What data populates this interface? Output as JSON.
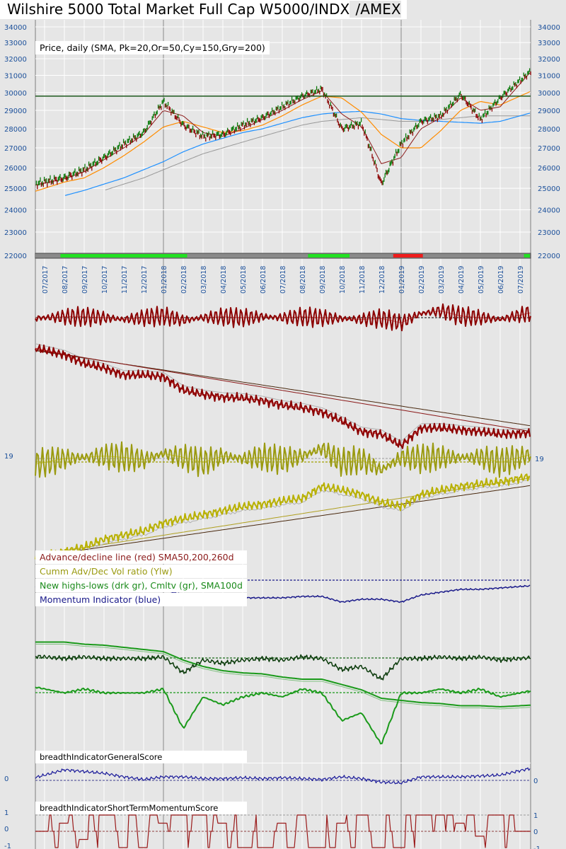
{
  "title": {
    "main": "Wilshire 5000 Total Market Full Cap W5000/INDX",
    "suffix": " /AMEX"
  },
  "colors": {
    "price_up": "#0a7a0a",
    "price_down": "#8b0000",
    "sma20": "#8b1a1a",
    "sma50": "#ff8c00",
    "sma150": "#1e90ff",
    "sma200": "#999999",
    "horizontal": "#1e5a1e",
    "axis_text": "#1a4f9a"
  },
  "chart_data": [
    {
      "type": "line",
      "title": "Price, daily (SMA, Pk=20,Or=50,Cy=150,Gry=200)",
      "x_tick_labels": [
        "07/2017",
        "08/2017",
        "09/2017",
        "10/2017",
        "11/2017",
        "12/2017",
        "01/2018",
        "02/2018",
        "03/2018",
        "04/2018",
        "05/2018",
        "06/2018",
        "07/2018",
        "08/2018",
        "09/2018",
        "10/2018",
        "11/2018",
        "12/2018",
        "01/2019",
        "02/2019",
        "03/2019",
        "04/2019",
        "05/2019",
        "06/2019",
        "07/2019"
      ],
      "y_ticks": [
        34000,
        33000,
        32000,
        31000,
        30000,
        29000,
        28000,
        27000,
        26000,
        25000,
        24000,
        23000,
        22000
      ],
      "y_scale": "log",
      "ylim": [
        22000,
        34000
      ],
      "horizontal_line": 29800,
      "series": [
        {
          "name": "Price",
          "values": [
            25300,
            25500,
            25900,
            26500,
            27200,
            27800,
            29500,
            28200,
            27600,
            27700,
            28200,
            28600,
            29200,
            29800,
            30200,
            28000,
            28300,
            25200,
            27200,
            28400,
            28700,
            29900,
            28500,
            29700,
            30700
          ]
        },
        {
          "name": "SMA20",
          "values": [
            25250,
            25450,
            25800,
            26400,
            27000,
            27700,
            29000,
            28700,
            27800,
            27600,
            28000,
            28500,
            29000,
            29600,
            30100,
            28800,
            28100,
            26200,
            26500,
            28000,
            28600,
            29700,
            29000,
            29200,
            30500
          ]
        },
        {
          "name": "SMA50",
          "values": [
            25000,
            25300,
            25500,
            26000,
            26600,
            27300,
            28100,
            28400,
            28100,
            27800,
            27900,
            28200,
            28700,
            29300,
            29800,
            29700,
            28900,
            27700,
            27000,
            27000,
            27900,
            29000,
            29500,
            29300,
            29800
          ]
        },
        {
          "name": "SMA150",
          "values": [
            null,
            24650,
            24900,
            25200,
            25500,
            25900,
            26300,
            26800,
            27200,
            27500,
            27800,
            28000,
            28300,
            28600,
            28800,
            28900,
            28950,
            28800,
            28550,
            28450,
            28400,
            28350,
            28300,
            28400,
            28700
          ]
        },
        {
          "name": "SMA200",
          "values": [
            null,
            null,
            null,
            24900,
            25200,
            25500,
            25900,
            26300,
            26700,
            27000,
            27300,
            27600,
            27900,
            28200,
            28400,
            28500,
            28600,
            28500,
            28400,
            28400,
            28500,
            28600,
            28700,
            28700,
            28700
          ]
        }
      ],
      "signal_band": [
        {
          "state": "neutral",
          "from": -0.5,
          "to": 0.8
        },
        {
          "state": "bullish",
          "from": 0.8,
          "to": 7.2
        },
        {
          "state": "neutral",
          "from": 7.2,
          "to": 13.3
        },
        {
          "state": "bullish",
          "from": 13.3,
          "to": 15.4
        },
        {
          "state": "neutral",
          "from": 15.4,
          "to": 17.6
        },
        {
          "state": "bearish",
          "from": 17.6,
          "to": 19.1
        },
        {
          "state": "neutral",
          "from": 19.1,
          "to": 24.2
        },
        {
          "state": "bullish",
          "from": 24.2,
          "to": 24.5
        }
      ]
    },
    {
      "type": "line",
      "legend": [
        "Advance/decline line (red) SMA50,200,260d",
        "Cumm Adv/Dec Vol ratio (Ylw)",
        "New highs-lows (drk gr), Cmltv (gr), SMA100d",
        "Momentum Indicator (blue)"
      ],
      "ad_osc": [
        0,
        0.1,
        0.1,
        0,
        -0.2,
        0,
        0.2,
        -0.3,
        0,
        0.1,
        0,
        0.1,
        0,
        0.1,
        0,
        -0.1,
        -0.2,
        -0.1,
        -0.6,
        0.5,
        0.8,
        0.2,
        0,
        -0.2,
        0.3
      ],
      "ad_line": [
        1.0,
        0.95,
        0.85,
        0.8,
        0.72,
        0.72,
        0.7,
        0.55,
        0.5,
        0.47,
        0.46,
        0.43,
        0.38,
        0.35,
        0.3,
        0.2,
        0.08,
        0.05,
        -0.08,
        0.12,
        0.12,
        0.1,
        0.08,
        0.05,
        0.06
      ],
      "vol_ratio_osc_label": "19",
      "vol_ratio_osc": [
        -0.2,
        0.1,
        0.2,
        0.3,
        0.2,
        0,
        0.5,
        0.2,
        -0.2,
        0.3,
        0.1,
        0.2,
        0.0,
        0.3,
        0.9,
        -0.2,
        0.0,
        -0.8,
        0.2,
        0.1,
        0.2,
        0.2,
        0.2,
        -0.2,
        0.2
      ],
      "cumm_vol_ratio": [
        0.0,
        0.05,
        0.1,
        0.2,
        0.25,
        0.3,
        0.4,
        0.45,
        0.5,
        0.55,
        0.6,
        0.63,
        0.67,
        0.7,
        0.85,
        0.8,
        0.75,
        0.65,
        0.6,
        0.75,
        0.8,
        0.85,
        0.88,
        0.9,
        0.95
      ],
      "momentum": [
        0.4,
        0.45,
        0.55,
        0.6,
        0.55,
        0.5,
        0.3,
        0.1,
        0.0,
        -0.05,
        0.0,
        0.0,
        0.0,
        0.05,
        0.05,
        -0.15,
        -0.05,
        -0.05,
        -0.15,
        0.1,
        0.2,
        0.3,
        0.3,
        0.35,
        0.4
      ],
      "new_highs_lows": [
        0.1,
        0.05,
        0.1,
        0.05,
        0.05,
        0.05,
        0.1,
        -0.4,
        0.0,
        -0.1,
        0.0,
        0.05,
        0.0,
        0.1,
        0.05,
        -0.3,
        -0.2,
        -0.6,
        0.05,
        0.05,
        0.1,
        0.05,
        0.1,
        0.0,
        0.05
      ],
      "new_highs_lows_cum": [
        0.35,
        0.35,
        0.33,
        0.32,
        0.3,
        0.28,
        0.26,
        0.18,
        0.12,
        0.08,
        0.06,
        0.05,
        0.02,
        0.0,
        0.0,
        -0.05,
        -0.1,
        -0.18,
        -0.2,
        -0.22,
        -0.23,
        -0.25,
        -0.25,
        -0.26,
        -0.25
      ]
    },
    {
      "type": "line",
      "title": "breadthIndicatorGeneralScore",
      "y_tick_labels": [
        "0"
      ],
      "values": [
        0.3,
        0.6,
        0.5,
        0.4,
        0.2,
        0.05,
        0.2,
        0.2,
        0.1,
        0.1,
        0.15,
        0.1,
        0.15,
        0.1,
        0.05,
        0.2,
        0.1,
        -0.1,
        -0.15,
        0.2,
        0.2,
        0.2,
        0.25,
        0.3,
        0.55
      ]
    },
    {
      "type": "line",
      "title": "breadthIndicatorShortTermMomentumScore",
      "y_tick_labels": [
        "1",
        "0",
        "-1"
      ],
      "values": [
        0,
        0.5,
        -0.5,
        1,
        -1,
        -1,
        0.5,
        1,
        1,
        0.5,
        -1,
        -1,
        0.5,
        1,
        -1,
        0.5,
        1,
        -1,
        -1,
        1,
        1,
        0.5,
        -0.3,
        1,
        0
      ]
    }
  ]
}
